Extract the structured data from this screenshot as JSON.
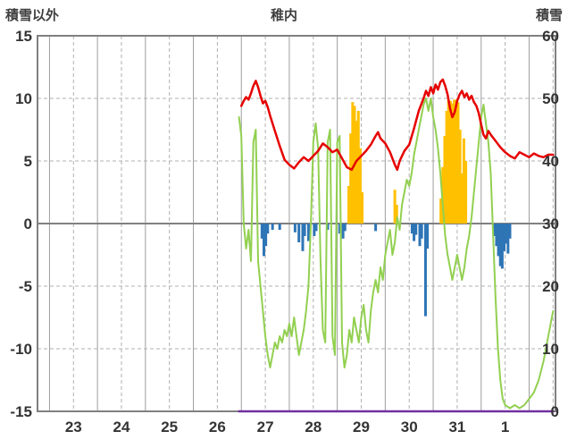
{
  "chart_data": {
    "type": "line",
    "title": "稚内",
    "left_axis": {
      "label": "積雪以外",
      "min": -15,
      "max": 15,
      "ticks": [
        15,
        10,
        5,
        0,
        -5,
        -10,
        -15
      ]
    },
    "right_axis": {
      "label": "積雪",
      "min": 0,
      "max": 60,
      "ticks": [
        60,
        50,
        40,
        30,
        20,
        10,
        0
      ]
    },
    "x_axis": {
      "tick_labels": [
        "23",
        "24",
        "25",
        "26",
        "27",
        "28",
        "29",
        "30",
        "31",
        "1"
      ],
      "domain_min": -0.75,
      "domain_max": 10.05
    },
    "gridlines": {
      "vertical_solid": [
        -0.5,
        0.5,
        1.5,
        2.5,
        3.5,
        4.5,
        5.5,
        6.5,
        7.5,
        8.5,
        9.5
      ],
      "vertical_dashed": [
        0,
        1,
        2,
        3,
        4,
        5,
        6,
        7,
        8,
        9,
        10
      ],
      "horizontal_dashed": [
        10,
        5,
        -5,
        -10
      ]
    },
    "colors": {
      "grid_solid": "#9e9e9e",
      "grid_dashed": "#b0b0b0",
      "zero_line": "#808080",
      "frame": "#808080",
      "text": "#333333"
    },
    "series": [
      {
        "name": "orange-bars",
        "type": "bar",
        "axis": "left",
        "color": "#ffc000",
        "points": [
          [
            5.74,
            3.0
          ],
          [
            5.78,
            7.2
          ],
          [
            5.82,
            9.7
          ],
          [
            5.86,
            9.4
          ],
          [
            5.9,
            8.2
          ],
          [
            5.94,
            9.0
          ],
          [
            5.98,
            6.0
          ],
          [
            6.02,
            2.5
          ],
          [
            6.7,
            2.7
          ],
          [
            6.74,
            1.5
          ],
          [
            7.66,
            2.0
          ],
          [
            7.7,
            4.5
          ],
          [
            7.74,
            7.0
          ],
          [
            7.78,
            9.0
          ],
          [
            7.82,
            9.9
          ],
          [
            7.86,
            9.8
          ],
          [
            7.9,
            9.6
          ],
          [
            7.94,
            9.9
          ],
          [
            7.98,
            9.9
          ],
          [
            8.02,
            9.7
          ],
          [
            8.06,
            7.5
          ],
          [
            8.1,
            4.0
          ],
          [
            8.14,
            6.8
          ],
          [
            8.18,
            5.0
          ]
        ]
      },
      {
        "name": "blue-bars",
        "type": "bar",
        "axis": "left",
        "color": "#2e75b6",
        "points": [
          [
            3.93,
            -1.2
          ],
          [
            3.97,
            -2.6
          ],
          [
            4.01,
            -1.8
          ],
          [
            4.05,
            -0.8
          ],
          [
            4.15,
            -0.5
          ],
          [
            4.3,
            -0.5
          ],
          [
            4.62,
            -0.7
          ],
          [
            4.7,
            -1.5
          ],
          [
            4.78,
            -2.2
          ],
          [
            4.82,
            -1.0
          ],
          [
            4.9,
            -1.4
          ],
          [
            5.02,
            -1.0
          ],
          [
            5.06,
            -0.6
          ],
          [
            5.3,
            -0.5
          ],
          [
            5.55,
            -0.8
          ],
          [
            5.62,
            -1.2
          ],
          [
            5.66,
            -0.6
          ],
          [
            6.3,
            -0.6
          ],
          [
            7.06,
            -0.8
          ],
          [
            7.1,
            -1.4
          ],
          [
            7.14,
            -0.9
          ],
          [
            7.22,
            -1.8
          ],
          [
            7.26,
            -1.2
          ],
          [
            7.34,
            -7.4
          ],
          [
            7.38,
            -2.0
          ],
          [
            8.78,
            -1.0
          ],
          [
            8.82,
            -1.8
          ],
          [
            8.86,
            -2.6
          ],
          [
            8.9,
            -3.4
          ],
          [
            8.94,
            -3.6
          ],
          [
            8.98,
            -2.2
          ],
          [
            9.02,
            -1.6
          ],
          [
            9.06,
            -2.4
          ],
          [
            9.1,
            -1.2
          ]
        ]
      },
      {
        "name": "green-line",
        "type": "line",
        "axis": "right",
        "color": "#92d050",
        "width": 2,
        "points": [
          [
            3.45,
            47
          ],
          [
            3.5,
            44
          ],
          [
            3.55,
            30
          ],
          [
            3.6,
            26
          ],
          [
            3.65,
            29
          ],
          [
            3.7,
            24
          ],
          [
            3.75,
            43
          ],
          [
            3.8,
            45
          ],
          [
            3.85,
            24
          ],
          [
            3.9,
            20
          ],
          [
            3.95,
            16
          ],
          [
            4.0,
            12
          ],
          [
            4.05,
            9
          ],
          [
            4.1,
            7
          ],
          [
            4.15,
            9
          ],
          [
            4.2,
            11
          ],
          [
            4.25,
            10
          ],
          [
            4.3,
            12
          ],
          [
            4.35,
            11
          ],
          [
            4.4,
            13
          ],
          [
            4.45,
            12
          ],
          [
            4.5,
            14
          ],
          [
            4.55,
            12
          ],
          [
            4.6,
            15
          ],
          [
            4.65,
            12
          ],
          [
            4.7,
            9
          ],
          [
            4.75,
            11
          ],
          [
            4.8,
            13
          ],
          [
            4.85,
            16
          ],
          [
            4.9,
            20
          ],
          [
            4.95,
            30
          ],
          [
            5.0,
            43
          ],
          [
            5.05,
            46
          ],
          [
            5.1,
            42
          ],
          [
            5.15,
            24
          ],
          [
            5.2,
            13
          ],
          [
            5.25,
            11
          ],
          [
            5.3,
            43
          ],
          [
            5.35,
            45
          ],
          [
            5.4,
            12
          ],
          [
            5.45,
            9
          ],
          [
            5.5,
            43
          ],
          [
            5.55,
            44
          ],
          [
            5.6,
            11
          ],
          [
            5.65,
            7
          ],
          [
            5.7,
            9
          ],
          [
            5.75,
            13
          ],
          [
            5.8,
            11
          ],
          [
            5.85,
            15
          ],
          [
            5.9,
            13
          ],
          [
            5.95,
            11
          ],
          [
            6.0,
            15
          ],
          [
            6.05,
            17
          ],
          [
            6.1,
            13
          ],
          [
            6.15,
            11
          ],
          [
            6.2,
            16
          ],
          [
            6.25,
            19
          ],
          [
            6.3,
            21
          ],
          [
            6.35,
            19
          ],
          [
            6.4,
            23
          ],
          [
            6.45,
            21
          ],
          [
            6.5,
            25
          ],
          [
            6.55,
            27
          ],
          [
            6.6,
            29
          ],
          [
            6.65,
            25
          ],
          [
            6.7,
            27
          ],
          [
            6.75,
            31
          ],
          [
            6.8,
            29
          ],
          [
            6.85,
            33
          ],
          [
            6.9,
            35
          ],
          [
            6.95,
            37
          ],
          [
            7.0,
            36
          ],
          [
            7.05,
            38
          ],
          [
            7.1,
            41
          ],
          [
            7.15,
            43
          ],
          [
            7.2,
            45
          ],
          [
            7.25,
            47
          ],
          [
            7.3,
            49
          ],
          [
            7.35,
            50
          ],
          [
            7.4,
            48
          ],
          [
            7.45,
            50
          ],
          [
            7.5,
            47
          ],
          [
            7.55,
            45
          ],
          [
            7.6,
            42
          ],
          [
            7.65,
            38
          ],
          [
            7.7,
            33
          ],
          [
            7.75,
            28
          ],
          [
            7.8,
            25
          ],
          [
            7.85,
            23
          ],
          [
            7.9,
            21
          ],
          [
            7.95,
            23
          ],
          [
            8.0,
            25
          ],
          [
            8.05,
            23
          ],
          [
            8.1,
            21
          ],
          [
            8.15,
            23
          ],
          [
            8.2,
            26
          ],
          [
            8.25,
            28
          ],
          [
            8.3,
            31
          ],
          [
            8.35,
            35
          ],
          [
            8.4,
            39
          ],
          [
            8.45,
            43
          ],
          [
            8.5,
            47
          ],
          [
            8.55,
            49
          ],
          [
            8.6,
            46
          ],
          [
            8.65,
            43
          ],
          [
            8.7,
            38
          ],
          [
            8.75,
            28
          ],
          [
            8.8,
            18
          ],
          [
            8.85,
            10
          ],
          [
            8.9,
            5
          ],
          [
            8.95,
            2
          ],
          [
            9.0,
            1
          ],
          [
            9.1,
            0.5
          ],
          [
            9.2,
            1
          ],
          [
            9.3,
            0.5
          ],
          [
            9.4,
            1
          ],
          [
            9.5,
            2
          ],
          [
            9.6,
            3
          ],
          [
            9.7,
            5
          ],
          [
            9.8,
            8
          ],
          [
            9.9,
            12
          ],
          [
            10.0,
            16
          ]
        ]
      },
      {
        "name": "purple-line",
        "type": "line",
        "axis": "right",
        "color": "#7030a0",
        "width": 2.5,
        "points": [
          [
            3.45,
            0
          ],
          [
            10.0,
            0
          ]
        ]
      },
      {
        "name": "red-line",
        "type": "line",
        "axis": "left",
        "color": "#e60000",
        "width": 2.5,
        "points": [
          [
            3.5,
            9.4
          ],
          [
            3.55,
            9.8
          ],
          [
            3.6,
            10.1
          ],
          [
            3.65,
            9.9
          ],
          [
            3.7,
            10.4
          ],
          [
            3.75,
            11.0
          ],
          [
            3.8,
            11.4
          ],
          [
            3.85,
            10.9
          ],
          [
            3.9,
            10.2
          ],
          [
            3.95,
            9.6
          ],
          [
            4.0,
            9.8
          ],
          [
            4.05,
            9.3
          ],
          [
            4.1,
            8.6
          ],
          [
            4.2,
            7.4
          ],
          [
            4.3,
            6.2
          ],
          [
            4.4,
            5.1
          ],
          [
            4.5,
            4.7
          ],
          [
            4.6,
            4.4
          ],
          [
            4.7,
            4.9
          ],
          [
            4.8,
            5.3
          ],
          [
            4.9,
            5.0
          ],
          [
            5.0,
            5.4
          ],
          [
            5.1,
            5.8
          ],
          [
            5.2,
            6.4
          ],
          [
            5.3,
            6.1
          ],
          [
            5.4,
            5.7
          ],
          [
            5.5,
            5.9
          ],
          [
            5.6,
            5.2
          ],
          [
            5.7,
            4.5
          ],
          [
            5.8,
            4.3
          ],
          [
            5.9,
            5.0
          ],
          [
            6.0,
            5.4
          ],
          [
            6.1,
            5.8
          ],
          [
            6.2,
            6.3
          ],
          [
            6.3,
            7.0
          ],
          [
            6.35,
            7.3
          ],
          [
            6.4,
            6.8
          ],
          [
            6.5,
            6.4
          ],
          [
            6.6,
            5.7
          ],
          [
            6.7,
            4.7
          ],
          [
            6.75,
            4.3
          ],
          [
            6.8,
            5.0
          ],
          [
            6.9,
            5.8
          ],
          [
            7.0,
            6.3
          ],
          [
            7.1,
            7.6
          ],
          [
            7.2,
            9.0
          ],
          [
            7.3,
            10.0
          ],
          [
            7.35,
            10.6
          ],
          [
            7.4,
            10.2
          ],
          [
            7.45,
            10.9
          ],
          [
            7.5,
            10.4
          ],
          [
            7.55,
            11.1
          ],
          [
            7.6,
            10.7
          ],
          [
            7.65,
            11.3
          ],
          [
            7.7,
            11.5
          ],
          [
            7.75,
            11.0
          ],
          [
            7.8,
            10.3
          ],
          [
            7.85,
            9.2
          ],
          [
            7.9,
            8.5
          ],
          [
            7.95,
            8.9
          ],
          [
            8.0,
            9.8
          ],
          [
            8.05,
            10.3
          ],
          [
            8.1,
            10.6
          ],
          [
            8.15,
            10.1
          ],
          [
            8.2,
            10.4
          ],
          [
            8.25,
            9.9
          ],
          [
            8.3,
            10.2
          ],
          [
            8.35,
            9.7
          ],
          [
            8.4,
            9.4
          ],
          [
            8.45,
            8.8
          ],
          [
            8.5,
            7.9
          ],
          [
            8.55,
            7.1
          ],
          [
            8.6,
            6.8
          ],
          [
            8.65,
            7.4
          ],
          [
            8.7,
            7.1
          ],
          [
            8.8,
            6.6
          ],
          [
            8.9,
            6.1
          ],
          [
            9.0,
            5.7
          ],
          [
            9.1,
            5.4
          ],
          [
            9.2,
            5.2
          ],
          [
            9.3,
            5.7
          ],
          [
            9.4,
            5.5
          ],
          [
            9.5,
            5.3
          ],
          [
            9.6,
            5.6
          ],
          [
            9.7,
            5.4
          ],
          [
            9.8,
            5.3
          ],
          [
            9.9,
            5.5
          ],
          [
            10.0,
            5.5
          ]
        ]
      }
    ]
  }
}
